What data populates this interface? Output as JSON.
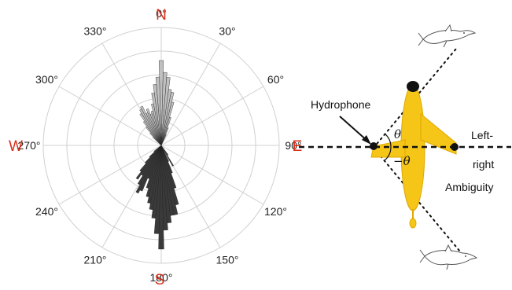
{
  "polar_plot": {
    "cardinals": {
      "north": "N",
      "east": "E",
      "south": "S",
      "west": "W"
    },
    "degree_labels": [
      {
        "angle": 0,
        "text": "0°"
      },
      {
        "angle": 30,
        "text": "30°"
      },
      {
        "angle": 60,
        "text": "60°"
      },
      {
        "angle": 90,
        "text": "90°"
      },
      {
        "angle": 120,
        "text": "120°"
      },
      {
        "angle": 150,
        "text": "150°"
      },
      {
        "angle": 180,
        "text": "180°"
      },
      {
        "angle": 210,
        "text": "210°"
      },
      {
        "angle": 240,
        "text": "240°"
      },
      {
        "angle": 270,
        "text": "270°"
      },
      {
        "angle": 300,
        "text": "300°"
      },
      {
        "angle": 330,
        "text": "330°"
      }
    ],
    "ring_fractions": [
      0.2,
      0.4,
      0.6,
      0.8,
      1.0
    ],
    "colors": {
      "light_bars": "#c0c0c0",
      "dark_bars": "#3a3a3a",
      "grid": "#d0d0d0",
      "cardinal": "#d9301a"
    },
    "light_bars": [
      {
        "angle": 0,
        "r": 0.72
      },
      {
        "angle": 3,
        "r": 0.62
      },
      {
        "angle": 6,
        "r": 0.58
      },
      {
        "angle": 9,
        "r": 0.48
      },
      {
        "angle": 12,
        "r": 0.46
      },
      {
        "angle": 15,
        "r": 0.38
      },
      {
        "angle": 18,
        "r": 0.25
      },
      {
        "angle": 21,
        "r": 0.16
      },
      {
        "angle": 24,
        "r": 0.1
      },
      {
        "angle": 357,
        "r": 0.58
      },
      {
        "angle": 354,
        "r": 0.52
      },
      {
        "angle": 351,
        "r": 0.45
      },
      {
        "angle": 348,
        "r": 0.36
      },
      {
        "angle": 345,
        "r": 0.3
      },
      {
        "angle": 342,
        "r": 0.28
      },
      {
        "angle": 339,
        "r": 0.33
      },
      {
        "angle": 336,
        "r": 0.3
      },
      {
        "angle": 333,
        "r": 0.37
      },
      {
        "angle": 330,
        "r": 0.35
      },
      {
        "angle": 327,
        "r": 0.32
      },
      {
        "angle": 324,
        "r": 0.25
      },
      {
        "angle": 321,
        "r": 0.2
      },
      {
        "angle": 318,
        "r": 0.14
      },
      {
        "angle": 315,
        "r": 0.1
      }
    ],
    "dark_bars": [
      {
        "angle": 180,
        "r": 0.88
      },
      {
        "angle": 177,
        "r": 0.72
      },
      {
        "angle": 174,
        "r": 0.66
      },
      {
        "angle": 171,
        "r": 0.6
      },
      {
        "angle": 168,
        "r": 0.6
      },
      {
        "angle": 165,
        "r": 0.52
      },
      {
        "angle": 162,
        "r": 0.38
      },
      {
        "angle": 159,
        "r": 0.25
      },
      {
        "angle": 156,
        "r": 0.15
      },
      {
        "angle": 150,
        "r": 0.2
      },
      {
        "angle": 145,
        "r": 0.1
      },
      {
        "angle": 183,
        "r": 0.75
      },
      {
        "angle": 186,
        "r": 0.62
      },
      {
        "angle": 189,
        "r": 0.55
      },
      {
        "angle": 192,
        "r": 0.5
      },
      {
        "angle": 195,
        "r": 0.45
      },
      {
        "angle": 198,
        "r": 0.38
      },
      {
        "angle": 201,
        "r": 0.3
      },
      {
        "angle": 204,
        "r": 0.42
      },
      {
        "angle": 207,
        "r": 0.45
      },
      {
        "angle": 210,
        "r": 0.38
      },
      {
        "angle": 213,
        "r": 0.3
      },
      {
        "angle": 216,
        "r": 0.35
      },
      {
        "angle": 219,
        "r": 0.28
      },
      {
        "angle": 222,
        "r": 0.2
      },
      {
        "angle": 225,
        "r": 0.14
      },
      {
        "angle": 230,
        "r": 0.08
      }
    ]
  },
  "ambiguity_diagram": {
    "hydrophone_label": "Hydrophone",
    "left_right_label_1": "Left-",
    "left_right_label_2": "right",
    "ambiguity_label": "Ambiguity",
    "theta_label": "θ",
    "neg_theta_label": "−θ",
    "colors": {
      "vehicle": "#f5c518",
      "vehicle_outline": "#e0a800"
    },
    "icons": [
      "dolphin-icon",
      "dolphin-icon"
    ]
  }
}
